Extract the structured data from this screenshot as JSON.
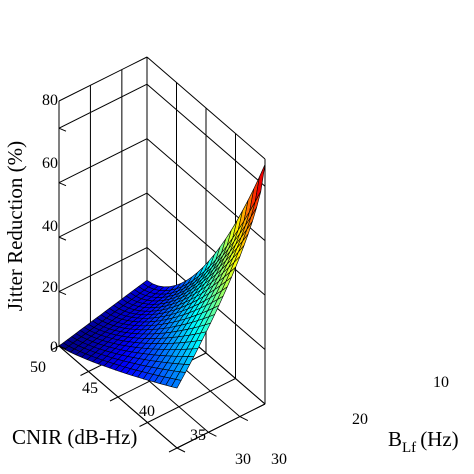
{
  "chart_data": {
    "type": "surface3d",
    "title": "",
    "xlabel": "CNIR (dB-Hz)",
    "ylabel_main": "B",
    "ylabel_sub": "Lf",
    "ylabel_unit": "(Hz)",
    "zlabel": "Jitter Reduction (%)",
    "x_ticks": [
      "30",
      "35",
      "40",
      "45",
      "50"
    ],
    "y_ticks": [
      "10",
      "20",
      "30"
    ],
    "z_ticks": [
      "0",
      "20",
      "40",
      "60",
      "80"
    ],
    "xlim": [
      30,
      50
    ],
    "ylim": [
      2,
      30
    ],
    "zlim": [
      0,
      90
    ],
    "grid": true,
    "colormap": "jet",
    "grid_resolution": 21,
    "sample_points": [
      {
        "cnir": 30,
        "blf": 2,
        "jitter_reduction": 88
      },
      {
        "cnir": 30,
        "blf": 30,
        "jitter_reduction": 22
      },
      {
        "cnir": 50,
        "blf": 2,
        "jitter_reduction": 8
      },
      {
        "cnir": 50,
        "blf": 30,
        "jitter_reduction": 0
      }
    ]
  }
}
